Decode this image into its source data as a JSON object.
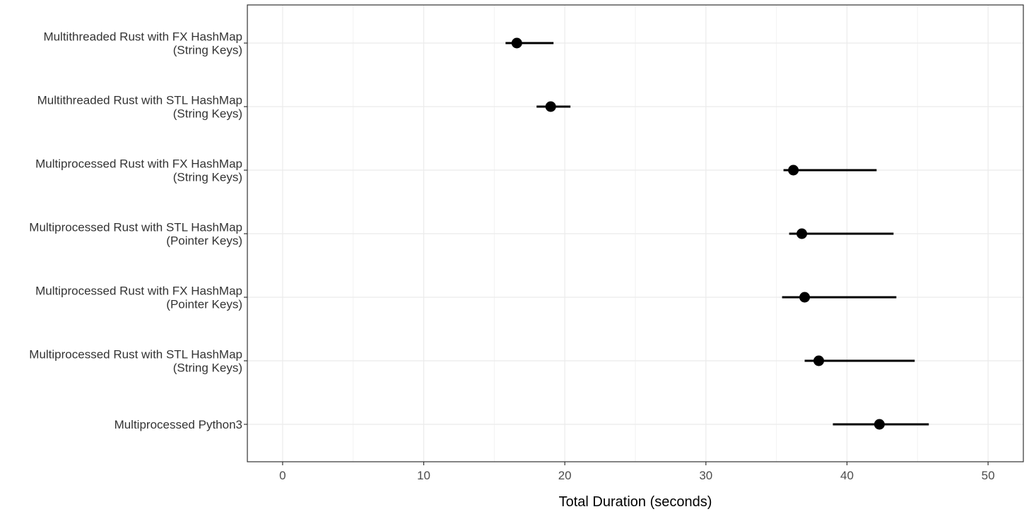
{
  "chart_data": {
    "type": "scatter",
    "style": "point-range (dot with interval line)",
    "xlabel": "Total Duration (seconds)",
    "ylabel": "",
    "xlim": [
      -2.5,
      52.5
    ],
    "xticks": [
      0,
      10,
      20,
      30,
      40,
      50
    ],
    "grid": true,
    "legend": "none",
    "point_color": "#000000",
    "categories": [
      {
        "label_lines": [
          "Multithreaded Rust with FX HashMap",
          "(String Keys)"
        ],
        "value": 16.6,
        "low": 15.8,
        "high": 19.2
      },
      {
        "label_lines": [
          "Multithreaded Rust with STL HashMap",
          "(String Keys)"
        ],
        "value": 19.0,
        "low": 18.0,
        "high": 20.4
      },
      {
        "label_lines": [
          "Multiprocessed Rust with FX HashMap",
          "(String Keys)"
        ],
        "value": 36.2,
        "low": 35.5,
        "high": 42.1
      },
      {
        "label_lines": [
          "Multiprocessed Rust with STL HashMap",
          "(Pointer Keys)"
        ],
        "value": 36.8,
        "low": 35.9,
        "high": 43.3
      },
      {
        "label_lines": [
          "Multiprocessed Rust with FX HashMap",
          "(Pointer Keys)"
        ],
        "value": 37.0,
        "low": 35.4,
        "high": 43.5
      },
      {
        "label_lines": [
          "Multiprocessed Rust with STL HashMap",
          "(String Keys)"
        ],
        "value": 38.0,
        "low": 37.0,
        "high": 44.8
      },
      {
        "label_lines": [
          "Multiprocessed Python3"
        ],
        "value": 42.3,
        "low": 39.0,
        "high": 45.8
      }
    ]
  }
}
